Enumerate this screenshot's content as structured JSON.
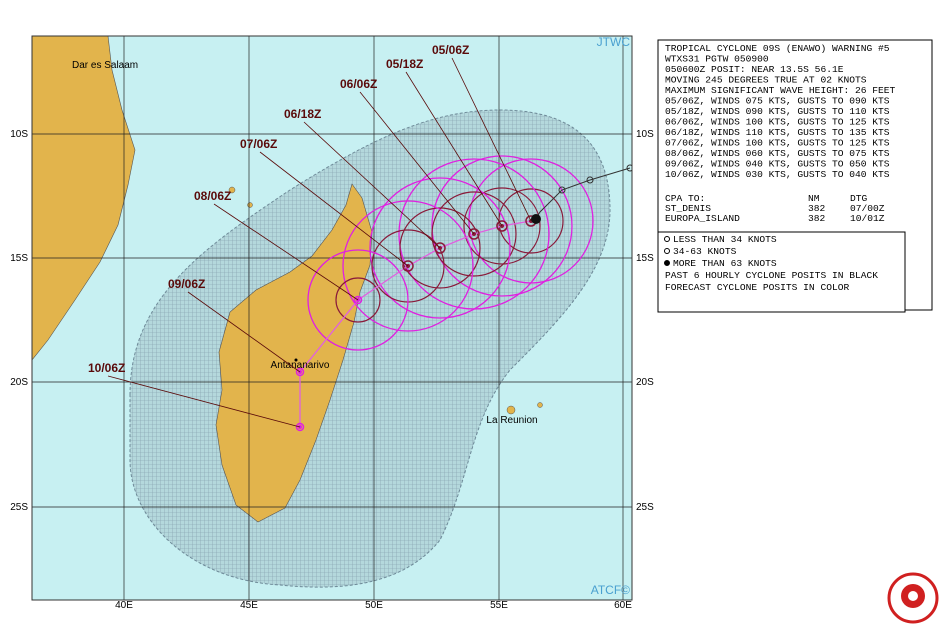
{
  "map": {
    "source_top": "JTWC",
    "source_bottom": "ATCF©",
    "lat_labels": [
      "10S",
      "15S",
      "20S",
      "25S"
    ],
    "lon_labels": [
      "40E",
      "45E",
      "50E",
      "55E",
      "60E"
    ],
    "places": [
      "Dar es Salaam",
      "Antananarivo",
      "La Reunion"
    ],
    "forecast_labels": [
      "05/06Z",
      "05/18Z",
      "06/06Z",
      "06/18Z",
      "07/06Z",
      "08/06Z",
      "09/06Z",
      "10/06Z"
    ]
  },
  "warning": {
    "lines": [
      "TROPICAL CYCLONE 09S (ENAWO) WARNING #5",
      "WTXS31 PGTW 050900",
      "050600Z POSIT: NEAR 13.5S 56.1E",
      "MOVING 245 DEGREES TRUE AT 02 KNOTS",
      "MAXIMUM SIGNIFICANT WAVE HEIGHT: 26 FEET",
      "05/06Z, WINDS 075 KTS, GUSTS TO 090 KTS",
      "05/18Z, WINDS 090 KTS, GUSTS TO 110 KTS",
      "06/06Z, WINDS 100 KTS, GUSTS TO 125 KTS",
      "06/18Z, WINDS 110 KTS, GUSTS TO 135 KTS",
      "07/06Z, WINDS 100 KTS, GUSTS TO 125 KTS",
      "08/06Z, WINDS 060 KTS, GUSTS TO 075 KTS",
      "09/06Z, WINDS 040 KTS, GUSTS TO 050 KTS",
      "10/06Z, WINDS 030 KTS, GUSTS TO 040 KTS"
    ],
    "cpa_header": [
      "CPA TO:",
      "NM",
      "DTG"
    ],
    "cpa_rows": [
      [
        "ST_DENIS",
        "382",
        "07/00Z"
      ],
      [
        "EUROPA_ISLAND",
        "382",
        "10/01Z"
      ]
    ]
  },
  "legend": {
    "lines": [
      "LESS THAN 34 KNOTS",
      "34-63 KNOTS",
      "MORE THAN 63 KNOTS",
      "PAST 6 HOURLY CYCLONE POSITS IN BLACK",
      "FORECAST CYCLONE POSITS IN COLOR"
    ]
  }
}
